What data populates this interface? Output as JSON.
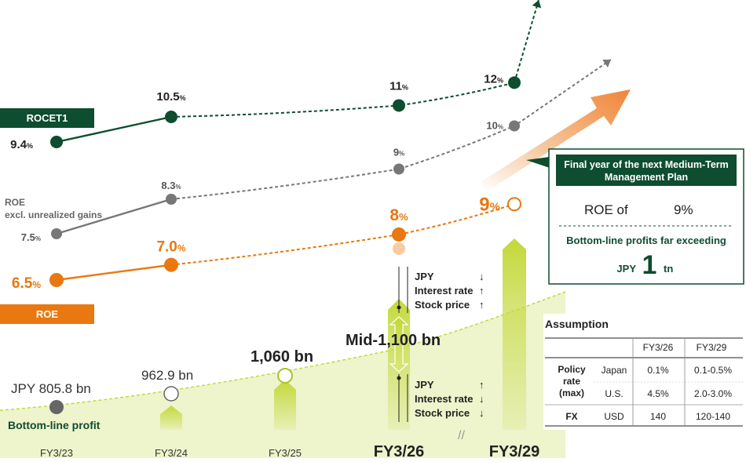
{
  "colors": {
    "rocet": "#0e4d2f",
    "roe": "#e8780f",
    "roe_ex": "#777777",
    "profit": "#c3d83a",
    "profit_light": "#eef4cc",
    "dark": "#222222",
    "teal": "#0e4d2f"
  },
  "chart_data": {
    "type": "line",
    "categories": [
      "FY3/23",
      "FY3/24",
      "FY3/25",
      "FY3/26",
      "FY3/29"
    ],
    "series": [
      {
        "name": "ROCET1",
        "values": [
          9.4,
          10.5,
          null,
          11,
          12
        ],
        "labels": [
          "9.4",
          "10.5",
          "",
          "11",
          "12"
        ],
        "unit": "%"
      },
      {
        "name": "ROE excl. unrealized gains",
        "values": [
          7.5,
          8.3,
          null,
          9,
          10
        ],
        "labels": [
          "7.5",
          "8.3",
          "",
          "9",
          "10"
        ],
        "unit": "%"
      },
      {
        "name": "ROE",
        "values": [
          6.5,
          7.0,
          null,
          8,
          9
        ],
        "labels": [
          "6.5",
          "7.0",
          "",
          "8",
          "9"
        ],
        "unit": "%"
      },
      {
        "name": "Bottom-line profit",
        "values": [
          805.8,
          962.9,
          1060,
          1100,
          null
        ],
        "labels": [
          "JPY 805.8 bn",
          "962.9 bn",
          "1,060 bn",
          "Mid-1,100 bn",
          ""
        ]
      }
    ],
    "series_labels": {
      "rocet": "ROCET1",
      "roe_ex_line1": "ROE",
      "roe_ex_line2": "excl. unrealized gains",
      "roe": "ROE",
      "profit": "Bottom-line profit"
    }
  },
  "scenario_up": {
    "row1": "JPY",
    "row2": "Interest rate",
    "row3": "Stock price",
    "arrow1": "↓",
    "arrow2": "↑",
    "arrow3": "↑"
  },
  "scenario_down": {
    "row1": "JPY",
    "row2": "Interest rate",
    "row3": "Stock price",
    "arrow1": "↑",
    "arrow2": "↓",
    "arrow3": "↓"
  },
  "callout": {
    "header_line1": "Final year of the next Medium-Term",
    "header_line2": "Management Plan",
    "roe_label": "ROE of",
    "roe_value": "9%",
    "profit_line": "Bottom-line profits far exceeding",
    "jpy": "JPY",
    "amount": "1",
    "unit": "tn"
  },
  "assumption": {
    "title": "Assumption",
    "col1": "FY3/26",
    "col2": "FY3/29",
    "policy_line1": "Policy",
    "policy_line2": "rate",
    "policy_line3": "(max)",
    "japan": "Japan",
    "us": "U.S.",
    "fx": "FX",
    "usd": "USD",
    "japan_v1": "0.1%",
    "japan_v2": "0.1-0.5%",
    "us_v1": "4.5%",
    "us_v2": "2.0-3.0%",
    "fx_v1": "140",
    "fx_v2": "120-140"
  },
  "axis_break": "//"
}
